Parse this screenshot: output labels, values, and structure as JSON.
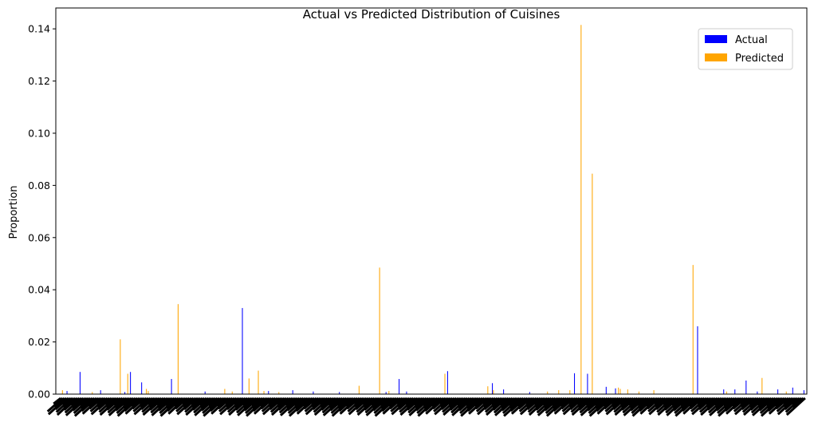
{
  "chart_data": {
    "type": "bar",
    "title": "Actual vs Predicted Distribution of Cuisines",
    "xlabel": "",
    "ylabel": "Proportion",
    "ylim": [
      0,
      0.148
    ],
    "yticks": [
      "0.00",
      "0.02",
      "0.04",
      "0.06",
      "0.08",
      "0.10",
      "0.12",
      "0.14"
    ],
    "category_count": 400,
    "grid": false,
    "legend_position": "top-right",
    "series": [
      {
        "name": "Actual",
        "color": "#0000ff",
        "points": [
          [
            4,
            0.0012
          ],
          [
            11,
            0.0085
          ],
          [
            22,
            0.0015
          ],
          [
            35,
            0.0008
          ],
          [
            38,
            0.0085
          ],
          [
            44,
            0.0045
          ],
          [
            60,
            0.0058
          ],
          [
            78,
            0.001
          ],
          [
            98,
            0.033
          ],
          [
            112,
            0.0012
          ],
          [
            125,
            0.0015
          ],
          [
            136,
            0.001
          ],
          [
            150,
            0.0008
          ],
          [
            175,
            0.0008
          ],
          [
            182,
            0.0058
          ],
          [
            186,
            0.001
          ],
          [
            208,
            0.0088
          ],
          [
            232,
            0.0042
          ],
          [
            238,
            0.0018
          ],
          [
            252,
            0.0008
          ],
          [
            276,
            0.008
          ],
          [
            283,
            0.0078
          ],
          [
            293,
            0.0028
          ],
          [
            298,
            0.0022
          ],
          [
            342,
            0.026
          ],
          [
            356,
            0.0018
          ],
          [
            362,
            0.0018
          ],
          [
            368,
            0.0052
          ],
          [
            374,
            0.001
          ],
          [
            385,
            0.0018
          ],
          [
            393,
            0.0025
          ],
          [
            399,
            0.0015
          ]
        ]
      },
      {
        "name": "Predicted",
        "color": "#ffa500",
        "points": [
          [
            2,
            0.0015
          ],
          [
            18,
            0.0008
          ],
          [
            33,
            0.021
          ],
          [
            37,
            0.0078
          ],
          [
            47,
            0.002
          ],
          [
            48,
            0.0012
          ],
          [
            64,
            0.0345
          ],
          [
            89,
            0.002
          ],
          [
            93,
            0.001
          ],
          [
            102,
            0.006
          ],
          [
            107,
            0.009
          ],
          [
            110,
            0.0012
          ],
          [
            118,
            0.0008
          ],
          [
            161,
            0.0032
          ],
          [
            172,
            0.0485
          ],
          [
            177,
            0.0012
          ],
          [
            207,
            0.0078
          ],
          [
            230,
            0.003
          ],
          [
            233,
            0.0015
          ],
          [
            262,
            0.001
          ],
          [
            268,
            0.0015
          ],
          [
            274,
            0.0015
          ],
          [
            280,
            0.1415
          ],
          [
            286,
            0.0845
          ],
          [
            300,
            0.0025
          ],
          [
            301,
            0.002
          ],
          [
            305,
            0.0018
          ],
          [
            311,
            0.001
          ],
          [
            319,
            0.0015
          ],
          [
            340,
            0.0495
          ],
          [
            358,
            0.001
          ],
          [
            377,
            0.0062
          ],
          [
            390,
            0.001
          ]
        ]
      }
    ]
  }
}
